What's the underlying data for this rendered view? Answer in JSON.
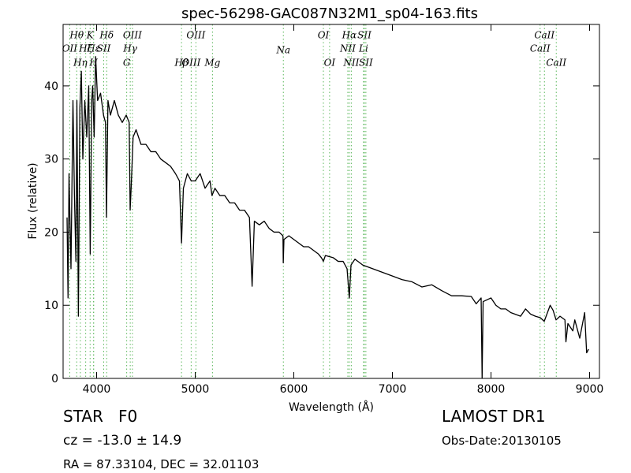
{
  "chart_data": {
    "type": "line",
    "title": "spec-56298-GAC087N32M1_sp04-163.fits",
    "x_label": "Wavelength (Å)",
    "y_label": "Flux (relative)",
    "xlim": [
      3660,
      9100
    ],
    "ylim": [
      0,
      48.4
    ],
    "xticks": [
      4000,
      5000,
      6000,
      7000,
      8000,
      9000
    ],
    "yticks": [
      0,
      10,
      20,
      30,
      40
    ],
    "line_marker_color": "#5cb85c",
    "spectral_lines": [
      {
        "text": "OII",
        "x": 3727
      },
      {
        "text": "Hθ",
        "x": 3798
      },
      {
        "text": "Hη",
        "x": 3835
      },
      {
        "text": "Hζ",
        "x": 3889
      },
      {
        "text": "K",
        "x": 3934
      },
      {
        "text": "Hε",
        "x": 3970
      },
      {
        "text": "H",
        "x": 3969
      },
      {
        "text": "SII",
        "x": 4072
      },
      {
        "text": "Hδ",
        "x": 4102
      },
      {
        "text": "G",
        "x": 4305
      },
      {
        "text": "Hγ",
        "x": 4341
      },
      {
        "text": "OIII",
        "x": 4363
      },
      {
        "text": "Hβ",
        "x": 4861
      },
      {
        "text": "OIII",
        "x": 4959
      },
      {
        "text": "OIII",
        "x": 5007
      },
      {
        "text": "Mg",
        "x": 5175
      },
      {
        "text": "Na",
        "x": 5894
      },
      {
        "text": "OI",
        "x": 6300
      },
      {
        "text": "OI",
        "x": 6363
      },
      {
        "text": "NII",
        "x": 6548
      },
      {
        "text": "Hα",
        "x": 6563
      },
      {
        "text": "NII",
        "x": 6583
      },
      {
        "text": "Li",
        "x": 6707
      },
      {
        "text": "SII",
        "x": 6716
      },
      {
        "text": "SII",
        "x": 6731
      },
      {
        "text": "CaII",
        "x": 8498
      },
      {
        "text": "CaII",
        "x": 8542
      },
      {
        "text": "CaII",
        "x": 8662
      }
    ],
    "x": [
      3700,
      3710,
      3720,
      3740,
      3760,
      3775,
      3790,
      3800,
      3815,
      3830,
      3845,
      3860,
      3880,
      3900,
      3920,
      3935,
      3950,
      3960,
      3975,
      3990,
      4010,
      4040,
      4070,
      4090,
      4100,
      4115,
      4140,
      4180,
      4220,
      4260,
      4300,
      4330,
      4340,
      4350,
      4370,
      4400,
      4450,
      4500,
      4550,
      4600,
      4650,
      4700,
      4750,
      4800,
      4840,
      4861,
      4880,
      4920,
      4960,
      5000,
      5050,
      5100,
      5150,
      5170,
      5200,
      5250,
      5300,
      5350,
      5400,
      5450,
      5500,
      5550,
      5577,
      5600,
      5650,
      5700,
      5750,
      5800,
      5850,
      5890,
      5893,
      5900,
      5950,
      6000,
      6050,
      6100,
      6150,
      6200,
      6250,
      6280,
      6300,
      6320,
      6400,
      6450,
      6500,
      6540,
      6563,
      6580,
      6620,
      6700,
      6800,
      6900,
      7000,
      7100,
      7200,
      7300,
      7400,
      7500,
      7600,
      7700,
      7800,
      7850,
      7900,
      7910,
      7920,
      8000,
      8050,
      8100,
      8150,
      8200,
      8300,
      8350,
      8400,
      8450,
      8500,
      8540,
      8600,
      8630,
      8660,
      8700,
      8750,
      8760,
      8780,
      8830,
      8850,
      8900,
      8950,
      8970,
      8990
    ],
    "series": [
      {
        "color": "#000000",
        "values": [
          22,
          11,
          28,
          15,
          38,
          25,
          16,
          38,
          8.5,
          37,
          42,
          30,
          38,
          33,
          40,
          17,
          38,
          40,
          33,
          44,
          38,
          39,
          36,
          35,
          22,
          38,
          36,
          38,
          36,
          35,
          36,
          35,
          23,
          26,
          33,
          34,
          32,
          32,
          31,
          31,
          30,
          29.5,
          29,
          28,
          27,
          18.5,
          26,
          28,
          27,
          27,
          28,
          26,
          27,
          25,
          26,
          25,
          25,
          24,
          24,
          23,
          23,
          22,
          12.6,
          21.5,
          21,
          21.5,
          20.5,
          20,
          20,
          19.5,
          15.8,
          19,
          19.5,
          19,
          18.5,
          18,
          18,
          17.5,
          17,
          16.5,
          16,
          16.8,
          16.5,
          16,
          16,
          15,
          11,
          15.5,
          16.3,
          15.5,
          15,
          14.5,
          14,
          13.5,
          13.2,
          12.5,
          12.8,
          12,
          11.3,
          11.3,
          11.2,
          10.2,
          11,
          0,
          10.5,
          11,
          10,
          9.5,
          9.5,
          9,
          8.5,
          9.5,
          8.8,
          8.5,
          8.3,
          7.8,
          10,
          9.3,
          8,
          8.5,
          8,
          5,
          7.5,
          6.5,
          8,
          5.5,
          9,
          3.5,
          4
        ]
      }
    ]
  },
  "footer": {
    "object": "STAR   F0",
    "redshift": "cz = -13.0 ± 14.9",
    "coords": "RA = 87.33104, DEC = 32.01103",
    "survey": "LAMOST DR1",
    "obs_date": "Obs-Date:20130105"
  }
}
